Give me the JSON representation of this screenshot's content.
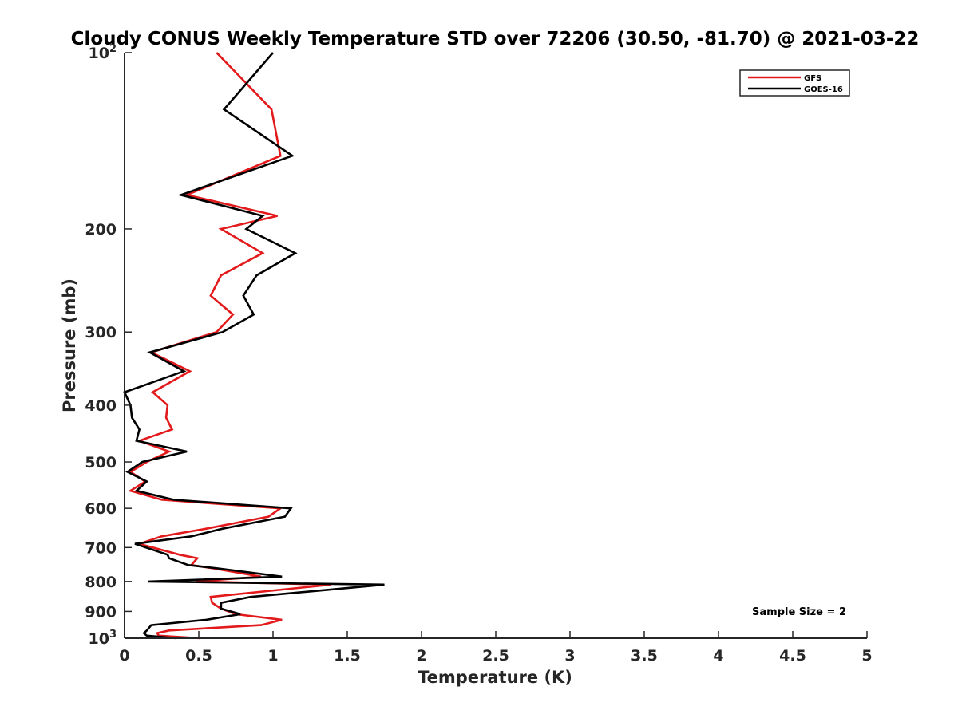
{
  "chart_data": {
    "type": "line",
    "title": "Cloudy CONUS Weekly Temperature STD over 72206 (30.50, -81.70) @ 2021-03-22",
    "xlabel": "Temperature (K)",
    "ylabel": "Pressure (mb)",
    "xlim": [
      0,
      5
    ],
    "ylim": [
      100,
      1000
    ],
    "y_scale": "log",
    "y_direction": "reversed",
    "grid": false,
    "legend_position": "top-right",
    "x_ticks": [
      {
        "value": 0,
        "label": "0"
      },
      {
        "value": 0.5,
        "label": "0.5"
      },
      {
        "value": 1,
        "label": "1"
      },
      {
        "value": 1.5,
        "label": "1.5"
      },
      {
        "value": 2,
        "label": "2"
      },
      {
        "value": 2.5,
        "label": "2.5"
      },
      {
        "value": 3,
        "label": "3"
      },
      {
        "value": 3.5,
        "label": "3.5"
      },
      {
        "value": 4,
        "label": "4"
      },
      {
        "value": 4.5,
        "label": "4.5"
      },
      {
        "value": 5,
        "label": "5"
      }
    ],
    "y_ticks": [
      {
        "value": 100,
        "label": "10",
        "sup": "2"
      },
      {
        "value": 200,
        "label": "200",
        "sup": ""
      },
      {
        "value": 300,
        "label": "300",
        "sup": ""
      },
      {
        "value": 400,
        "label": "400",
        "sup": ""
      },
      {
        "value": 500,
        "label": "500",
        "sup": ""
      },
      {
        "value": 600,
        "label": "600",
        "sup": ""
      },
      {
        "value": 700,
        "label": "700",
        "sup": ""
      },
      {
        "value": 800,
        "label": "800",
        "sup": ""
      },
      {
        "value": 900,
        "label": "900",
        "sup": ""
      },
      {
        "value": 1000,
        "label": "10",
        "sup": "3"
      }
    ],
    "series": [
      {
        "name": "GFS",
        "color": "#e31a1c",
        "points": [
          [
            0.62,
            100
          ],
          [
            0.99,
            125
          ],
          [
            1.05,
            150
          ],
          [
            0.42,
            175
          ],
          [
            1.03,
            190
          ],
          [
            0.65,
            200
          ],
          [
            0.93,
            220
          ],
          [
            0.65,
            240
          ],
          [
            0.58,
            260
          ],
          [
            0.73,
            280
          ],
          [
            0.62,
            300
          ],
          [
            0.18,
            325
          ],
          [
            0.44,
            350
          ],
          [
            0.19,
            380
          ],
          [
            0.29,
            400
          ],
          [
            0.28,
            420
          ],
          [
            0.32,
            440
          ],
          [
            0.1,
            460
          ],
          [
            0.3,
            480
          ],
          [
            0.15,
            500
          ],
          [
            0.04,
            520
          ],
          [
            0.14,
            540
          ],
          [
            0.04,
            560
          ],
          [
            0.25,
            580
          ],
          [
            1.05,
            600
          ],
          [
            0.97,
            620
          ],
          [
            0.55,
            650
          ],
          [
            0.25,
            670
          ],
          [
            0.1,
            690
          ],
          [
            0.37,
            720
          ],
          [
            0.49,
            730
          ],
          [
            0.45,
            750
          ],
          [
            0.6,
            760
          ],
          [
            0.92,
            785
          ],
          [
            0.48,
            800
          ],
          [
            1.39,
            810
          ],
          [
            0.58,
            850
          ],
          [
            0.59,
            870
          ],
          [
            0.65,
            890
          ],
          [
            0.75,
            910
          ],
          [
            1.06,
            930
          ],
          [
            0.92,
            950
          ],
          [
            0.3,
            970
          ],
          [
            0.22,
            980
          ],
          [
            0.23,
            990
          ],
          [
            0.51,
            1000
          ]
        ]
      },
      {
        "name": "GOES-16",
        "color": "#000000",
        "points": [
          [
            1.0,
            100
          ],
          [
            0.67,
            125
          ],
          [
            1.13,
            150
          ],
          [
            0.38,
            175
          ],
          [
            0.93,
            190
          ],
          [
            0.82,
            200
          ],
          [
            1.15,
            220
          ],
          [
            0.89,
            240
          ],
          [
            0.8,
            260
          ],
          [
            0.87,
            280
          ],
          [
            0.66,
            300
          ],
          [
            0.17,
            325
          ],
          [
            0.4,
            350
          ],
          [
            0.0,
            380
          ],
          [
            0.04,
            400
          ],
          [
            0.05,
            420
          ],
          [
            0.1,
            440
          ],
          [
            0.08,
            460
          ],
          [
            0.42,
            480
          ],
          [
            0.12,
            500
          ],
          [
            0.02,
            520
          ],
          [
            0.15,
            540
          ],
          [
            0.08,
            560
          ],
          [
            0.33,
            580
          ],
          [
            1.12,
            600
          ],
          [
            1.08,
            620
          ],
          [
            0.66,
            650
          ],
          [
            0.45,
            670
          ],
          [
            0.07,
            690
          ],
          [
            0.29,
            720
          ],
          [
            0.3,
            730
          ],
          [
            0.43,
            750
          ],
          [
            0.63,
            760
          ],
          [
            1.06,
            785
          ],
          [
            0.16,
            800
          ],
          [
            1.75,
            810
          ],
          [
            0.85,
            850
          ],
          [
            0.65,
            870
          ],
          [
            0.65,
            890
          ],
          [
            0.78,
            910
          ],
          [
            0.55,
            930
          ],
          [
            0.18,
            950
          ],
          [
            0.15,
            970
          ],
          [
            0.13,
            980
          ],
          [
            0.15,
            990
          ],
          [
            0.35,
            1000
          ]
        ]
      }
    ],
    "annotations": [
      {
        "text": "Sample Size = 2",
        "position": "bottom-right"
      }
    ]
  }
}
